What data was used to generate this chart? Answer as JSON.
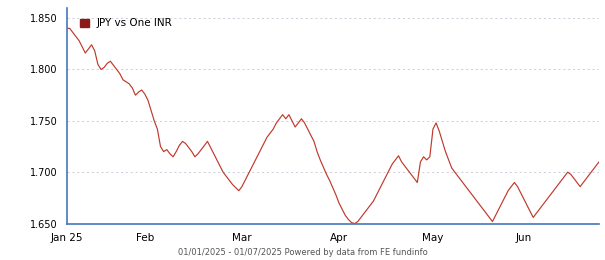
{
  "title": "JPY vs One INR",
  "line_color": "#c0392b",
  "legend_color": "#8b1a1a",
  "background_color": "#ffffff",
  "grid_color": "#bbbbcc",
  "ylim": [
    1.65,
    1.86
  ],
  "yticks": [
    1.65,
    1.7,
    1.75,
    1.8,
    1.85
  ],
  "xlabel_bottom": "01/01/2025 - 01/07/2025 Powered by data from FE fundinfo",
  "x_tick_labels": [
    "Jan 25",
    "Feb",
    "Mar",
    "Apr",
    "May",
    "Jun"
  ],
  "spine_color": "#4477bb",
  "values": [
    1.84,
    1.84,
    1.836,
    1.832,
    1.828,
    1.822,
    1.816,
    1.82,
    1.824,
    1.818,
    1.805,
    1.8,
    1.802,
    1.806,
    1.808,
    1.804,
    1.8,
    1.796,
    1.79,
    1.788,
    1.786,
    1.782,
    1.775,
    1.778,
    1.78,
    1.776,
    1.77,
    1.76,
    1.75,
    1.742,
    1.725,
    1.72,
    1.722,
    1.718,
    1.715,
    1.72,
    1.726,
    1.73,
    1.728,
    1.724,
    1.72,
    1.715,
    1.718,
    1.722,
    1.726,
    1.73,
    1.724,
    1.718,
    1.712,
    1.706,
    1.7,
    1.696,
    1.692,
    1.688,
    1.685,
    1.682,
    1.686,
    1.692,
    1.698,
    1.704,
    1.71,
    1.716,
    1.722,
    1.728,
    1.734,
    1.738,
    1.742,
    1.748,
    1.752,
    1.756,
    1.752,
    1.756,
    1.75,
    1.744,
    1.748,
    1.752,
    1.748,
    1.742,
    1.736,
    1.73,
    1.72,
    1.712,
    1.705,
    1.698,
    1.692,
    1.685,
    1.678,
    1.67,
    1.664,
    1.658,
    1.654,
    1.651,
    1.65,
    1.652,
    1.656,
    1.66,
    1.664,
    1.668,
    1.672,
    1.678,
    1.684,
    1.69,
    1.696,
    1.702,
    1.708,
    1.712,
    1.716,
    1.71,
    1.706,
    1.702,
    1.698,
    1.694,
    1.69,
    1.71,
    1.715,
    1.712,
    1.715,
    1.742,
    1.748,
    1.74,
    1.73,
    1.72,
    1.712,
    1.704,
    1.7,
    1.696,
    1.692,
    1.688,
    1.684,
    1.68,
    1.676,
    1.672,
    1.668,
    1.664,
    1.66,
    1.656,
    1.652,
    1.658,
    1.664,
    1.67,
    1.676,
    1.682,
    1.686,
    1.69,
    1.686,
    1.68,
    1.674,
    1.668,
    1.662,
    1.656,
    1.66,
    1.664,
    1.668,
    1.672,
    1.676,
    1.68,
    1.684,
    1.688,
    1.692,
    1.696,
    1.7,
    1.698,
    1.694,
    1.69,
    1.686,
    1.69,
    1.694,
    1.698,
    1.702,
    1.706,
    1.71
  ]
}
